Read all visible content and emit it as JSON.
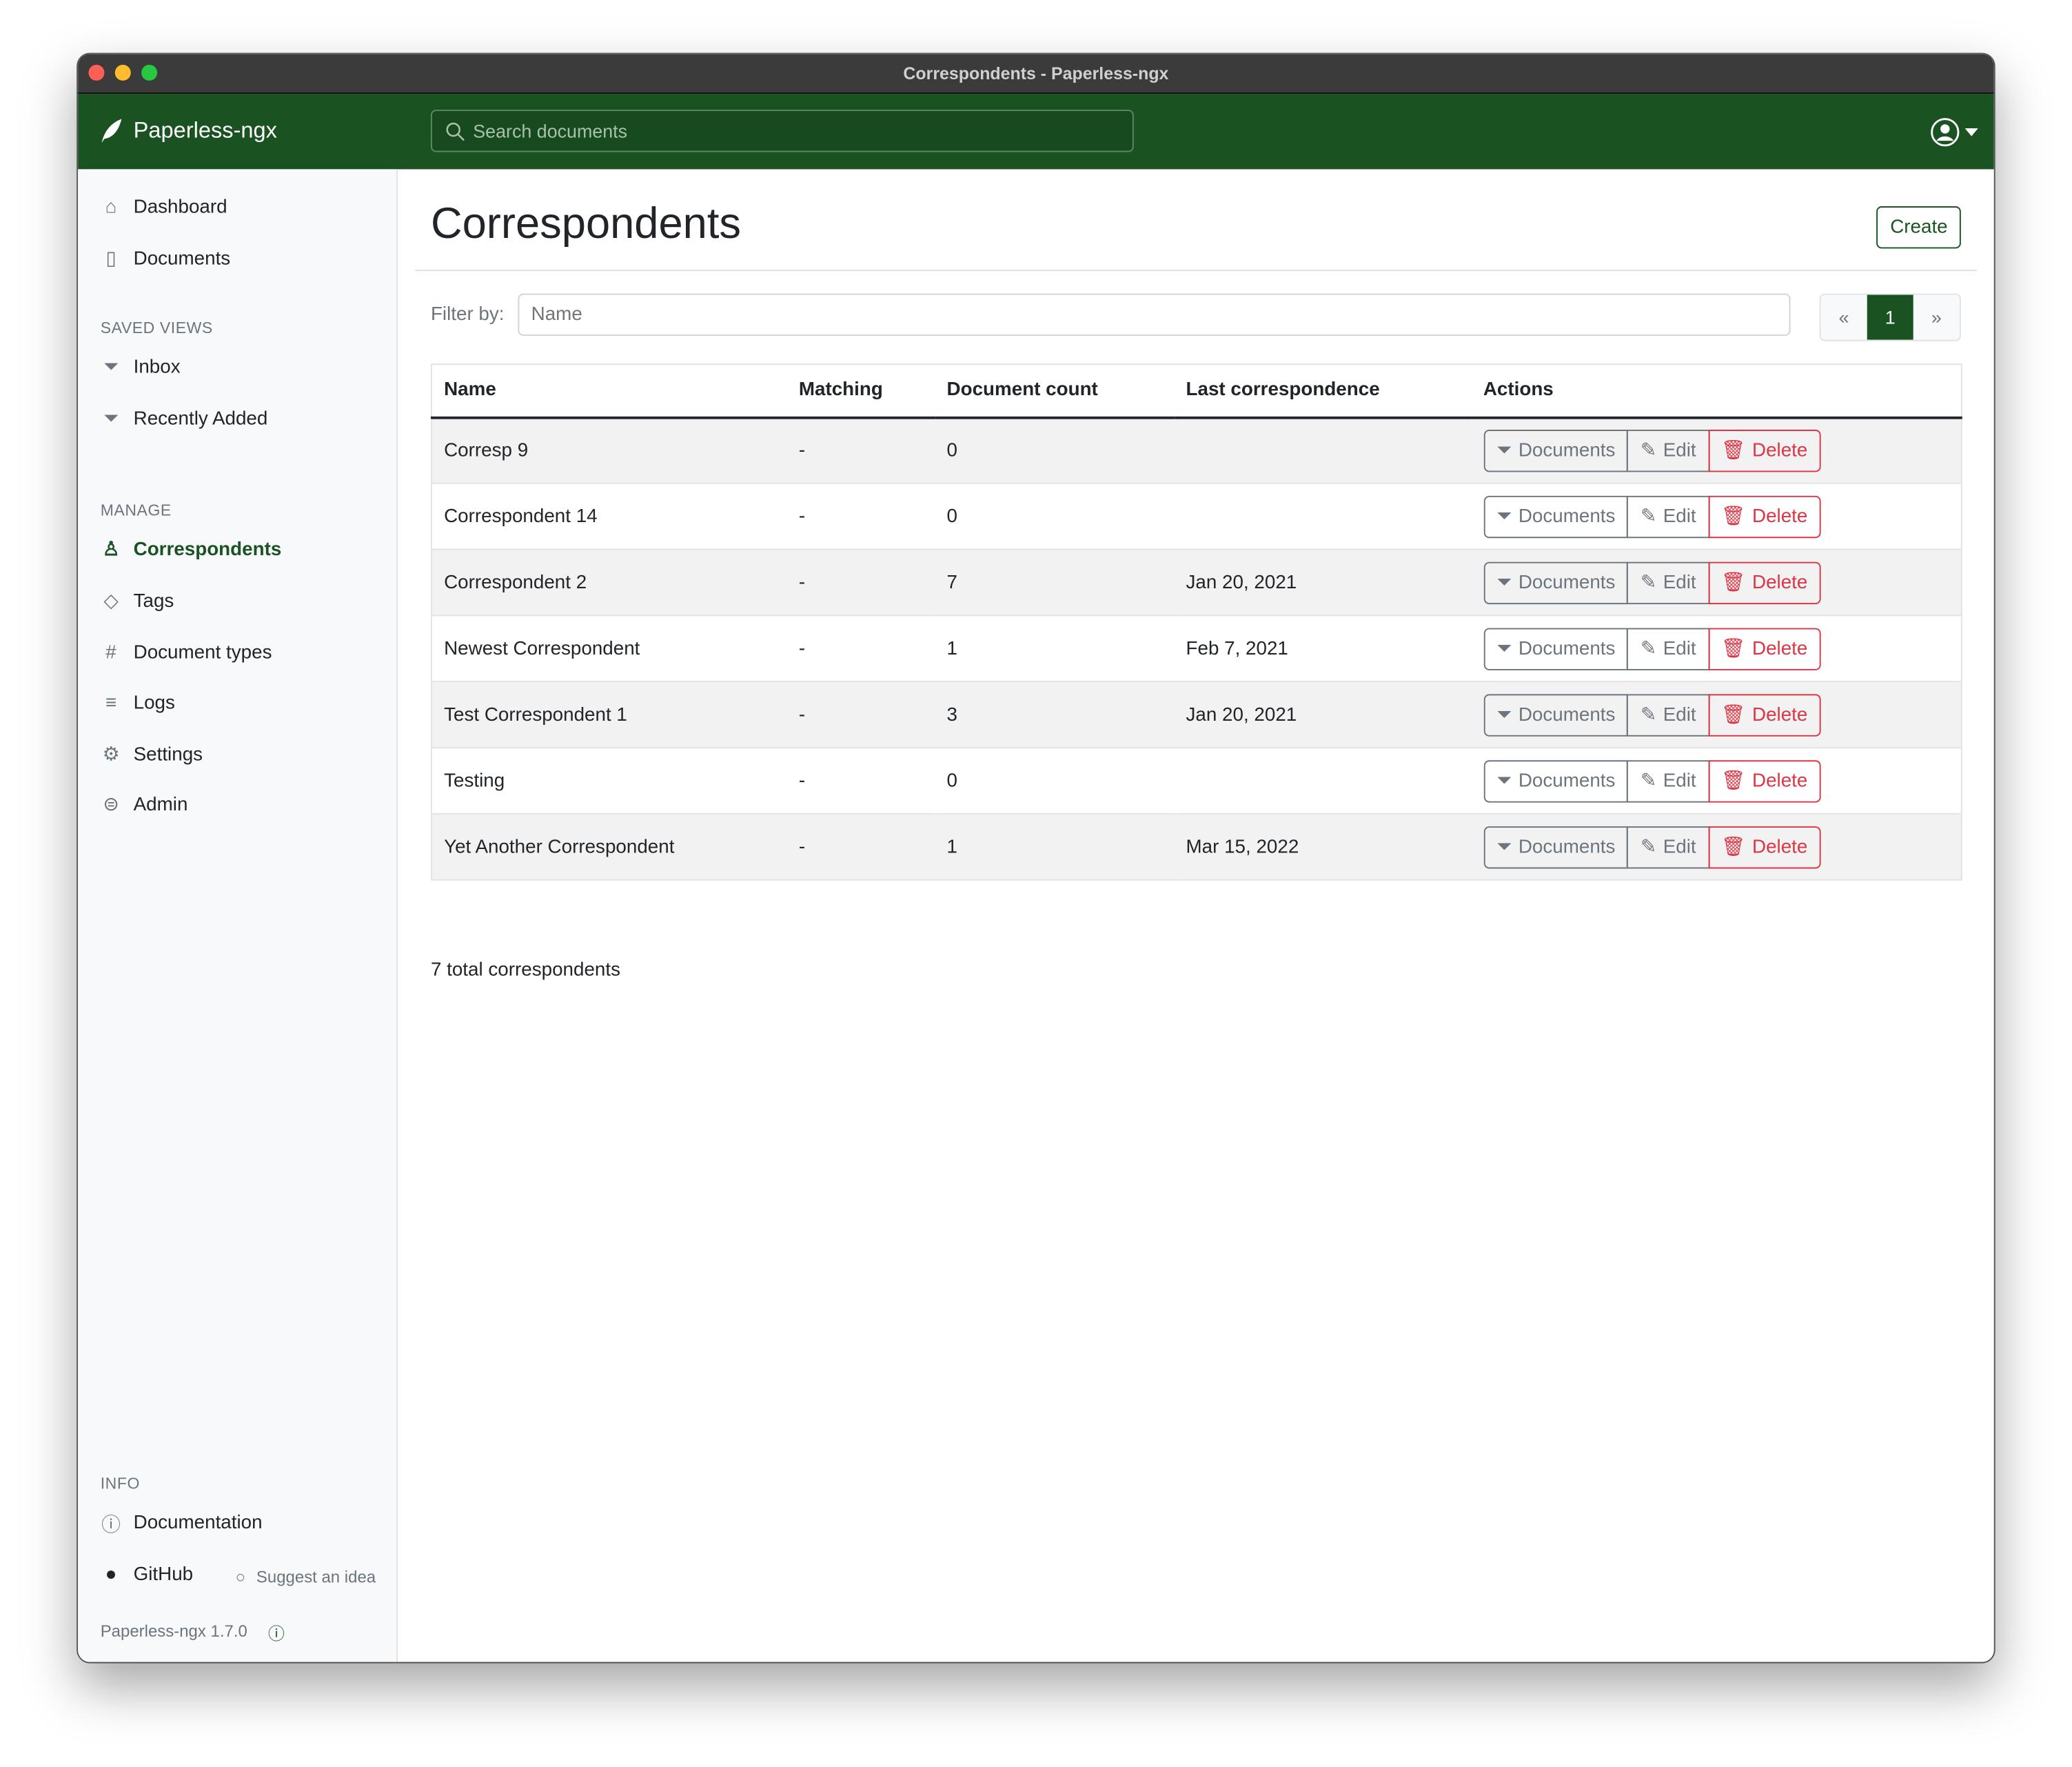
{
  "window": {
    "title": "Correspondents - Paperless-ngx"
  },
  "colors": {
    "brand": "#1a5222",
    "danger": "#dc3545"
  },
  "header": {
    "brand": "Paperless-ngx",
    "search_placeholder": "Search documents"
  },
  "sidebar": {
    "main": [
      {
        "label": "Dashboard",
        "icon": "house-icon"
      },
      {
        "label": "Documents",
        "icon": "files-icon"
      }
    ],
    "saved_views_heading": "SAVED VIEWS",
    "saved_views": [
      {
        "label": "Inbox"
      },
      {
        "label": "Recently Added"
      }
    ],
    "manage_heading": "MANAGE",
    "manage": [
      {
        "label": "Correspondents",
        "icon": "person-icon",
        "active": true
      },
      {
        "label": "Tags",
        "icon": "tags-icon"
      },
      {
        "label": "Document types",
        "icon": "hash-icon"
      },
      {
        "label": "Logs",
        "icon": "text-left-icon"
      },
      {
        "label": "Settings",
        "icon": "gear-icon"
      },
      {
        "label": "Admin",
        "icon": "toggles-icon"
      }
    ],
    "info_heading": "INFO",
    "documentation": "Documentation",
    "github": "GitHub",
    "suggest": "Suggest an idea",
    "version": "Paperless-ngx 1.7.0"
  },
  "main": {
    "title": "Correspondents",
    "create_label": "Create",
    "filter_label": "Filter by:",
    "filter_placeholder": "Name",
    "pager": {
      "prev": "«",
      "current": "1",
      "next": "»"
    },
    "columns": [
      "Name",
      "Matching",
      "Document count",
      "Last correspondence",
      "Actions"
    ],
    "rows": [
      {
        "name": "Corresp 9",
        "matching": "-",
        "count": "0",
        "last": ""
      },
      {
        "name": "Correspondent 14",
        "matching": "-",
        "count": "0",
        "last": ""
      },
      {
        "name": "Correspondent 2",
        "matching": "-",
        "count": "7",
        "last": "Jan 20, 2021"
      },
      {
        "name": "Newest Correspondent",
        "matching": "-",
        "count": "1",
        "last": "Feb 7, 2021"
      },
      {
        "name": "Test Correspondent 1",
        "matching": "-",
        "count": "3",
        "last": "Jan 20, 2021"
      },
      {
        "name": "Testing",
        "matching": "-",
        "count": "0",
        "last": ""
      },
      {
        "name": "Yet Another Correspondent",
        "matching": "-",
        "count": "1",
        "last": "Mar 15, 2022"
      }
    ],
    "actions": {
      "documents": "Documents",
      "edit": "Edit",
      "delete": "Delete"
    },
    "total": "7 total correspondents"
  }
}
